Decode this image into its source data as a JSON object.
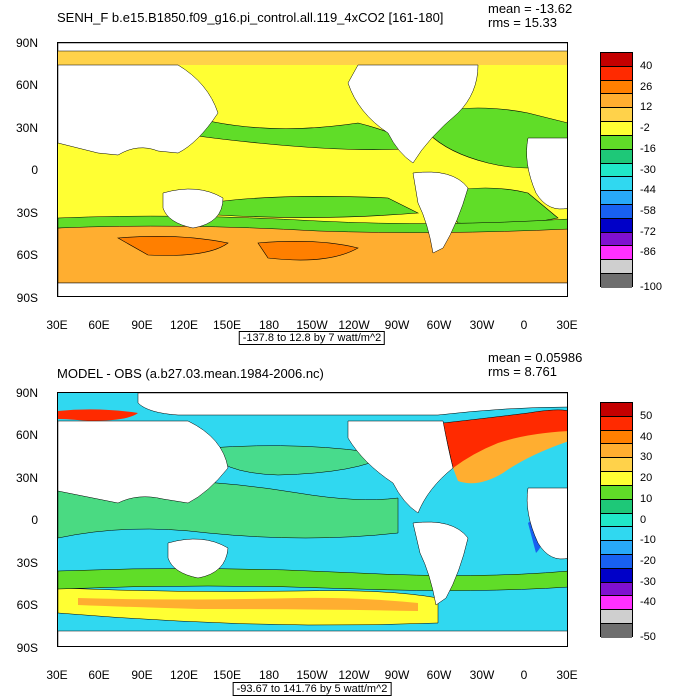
{
  "chart_data": [
    {
      "type": "heatmap",
      "title": "SENH_F b.e15.B1850.f09_g16.pi_control.all.119_4xCO2 [161-180]",
      "mean_text": "mean = -13.62",
      "rms_text": "rms = 15.33",
      "range_text": "-137.8 to 12.8 by 7 watt/m^2",
      "y_ticks": [
        "90N",
        "60N",
        "30N",
        "0",
        "30S",
        "60S",
        "90S"
      ],
      "x_ticks": [
        "30E",
        "60E",
        "90E",
        "120E",
        "150E",
        "180",
        "150W",
        "120W",
        "90W",
        "60W",
        "30W",
        "0",
        "30E"
      ],
      "colorbar_labels": [
        "40",
        "26",
        "12",
        "-2",
        "-16",
        "-30",
        "-44",
        "-58",
        "-72",
        "-86",
        "-100"
      ],
      "colorbar_colors": [
        "#c40000",
        "#ff2a00",
        "#ff7f00",
        "#ffae30",
        "#ffd24a",
        "#ffff33",
        "#60dd28",
        "#1ec878",
        "#20e8c8",
        "#30d8f0",
        "#28a8f8",
        "#1860f0",
        "#0000c8",
        "#8010d0",
        "#ff30ff",
        "#cfcfcf",
        "#6e6e6e"
      ]
    },
    {
      "type": "heatmap",
      "title": "MODEL - OBS (a.b27.03.mean.1984-2006.nc)",
      "mean_text": "mean = 0.05986",
      "rms_text": "rms = 8.761",
      "range_text": "-93.67 to 141.76 by 5 watt/m^2",
      "y_ticks": [
        "90N",
        "60N",
        "30N",
        "0",
        "30S",
        "60S",
        "90S"
      ],
      "x_ticks": [
        "30E",
        "60E",
        "90E",
        "120E",
        "150E",
        "180",
        "150W",
        "120W",
        "90W",
        "60W",
        "30W",
        "0",
        "30E"
      ],
      "colorbar_labels": [
        "50",
        "40",
        "30",
        "20",
        "10",
        "0",
        "-10",
        "-20",
        "-30",
        "-40",
        "-50"
      ],
      "colorbar_colors": [
        "#c40000",
        "#ff2a00",
        "#ff7f00",
        "#ffae30",
        "#ffd24a",
        "#ffff33",
        "#60dd28",
        "#1ec878",
        "#20e8c8",
        "#30d8f0",
        "#28a8f8",
        "#1860f0",
        "#0000c8",
        "#8010d0",
        "#ff30ff",
        "#cfcfcf",
        "#6e6e6e"
      ]
    }
  ],
  "colors": {
    "land": "#ffffff",
    "contour": "#000000",
    "panel1_ocean": "#ffff33",
    "panel1_green": "#60dd28",
    "panel1_orange": "#ffae30",
    "panel2_ocean": "#30d8f0",
    "panel2_green": "#60dd28"
  }
}
